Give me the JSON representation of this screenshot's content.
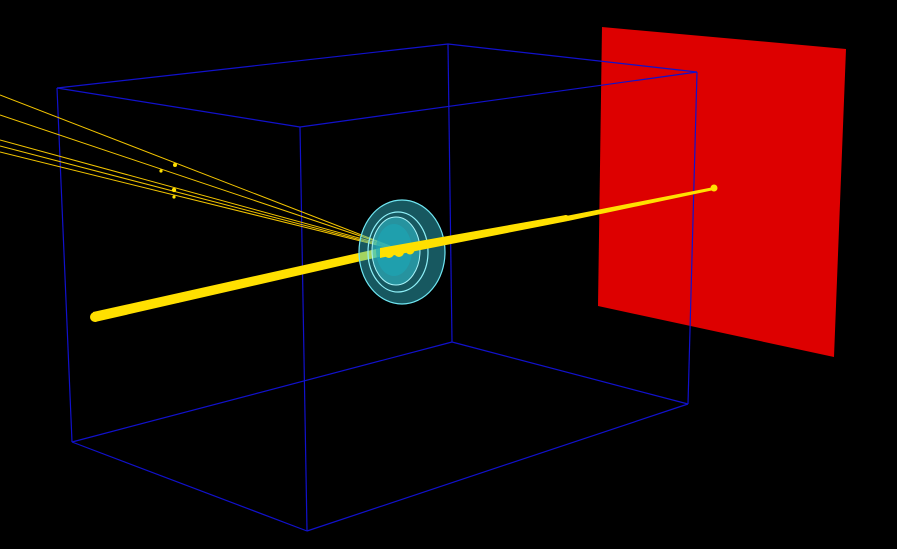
{
  "scene": {
    "background": "#000000",
    "box_color": "#1111cc",
    "screen_color": "#dd0000",
    "lens_color": "#33c4d4",
    "beam_color": "#ffe000",
    "ray_color": "#f2c400"
  }
}
